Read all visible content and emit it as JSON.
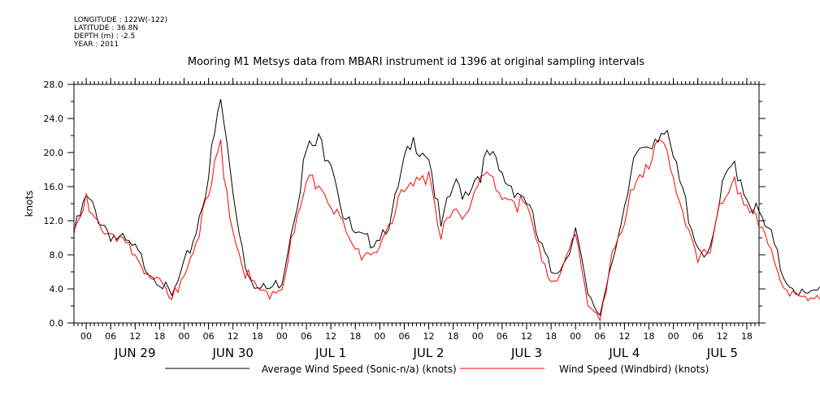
{
  "header": {
    "longitude": "LONGITUDE : 122W(-122)",
    "latitude": "LATITUDE : 36.8N",
    "depth": "DEPTH (m) : -2.5",
    "year": "YEAR : 2011"
  },
  "chart_data": {
    "type": "line",
    "title": "Mooring M1 Metsys data from MBARI instrument id 1396 at original sampling intervals",
    "ylabel": "knots",
    "ylim": [
      0,
      28
    ],
    "y_ticks": [
      "0.0",
      "4.0",
      "8.0",
      "12.0",
      "16.0",
      "20.0",
      "24.0",
      "28.0"
    ],
    "xlim_hours": [
      -3,
      165
    ],
    "x_hour_ticks": [
      "00",
      "06",
      "12",
      "18",
      "00",
      "06",
      "12",
      "18",
      "00",
      "06",
      "12",
      "18",
      "00",
      "06",
      "12",
      "18",
      "00",
      "06",
      "12",
      "18",
      "00",
      "06",
      "12",
      "18",
      "00",
      "06",
      "12",
      "18"
    ],
    "x_day_labels": [
      "JUN 29",
      "JUN 30",
      "JUL 1",
      "JUL 2",
      "JUL 3",
      "JUL 4",
      "JUL 5"
    ],
    "x_start": "2011-06-28 21:00",
    "x_step_hours": 3,
    "series": [
      {
        "name": "Average Wind Speed (Sonic-n/a) (knots)",
        "color": "#000000",
        "values": [
          10.5,
          14.5,
          12.5,
          10.5,
          9.5,
          8.5,
          6.5,
          5,
          3,
          6.5,
          11,
          17.5,
          26,
          15.5,
          7,
          4,
          4,
          5,
          13,
          20,
          21,
          20,
          13,
          10,
          9.5,
          10.5,
          12.5,
          18.5,
          21.5,
          20,
          11,
          16,
          15.5,
          17.5,
          19.5,
          17,
          16,
          14.5,
          9.5,
          6,
          7,
          11,
          3,
          1,
          8,
          12.5,
          20,
          21.5,
          23,
          19,
          14,
          9,
          8,
          15.5,
          19,
          15,
          12.5,
          10,
          5.5,
          4,
          3,
          4,
          4,
          5,
          5.5,
          6.5,
          8.5
        ]
      },
      {
        "name": "Wind Speed (Windbird) (knots)",
        "color": "#ff0000",
        "values": [
          10,
          14,
          12,
          10,
          9,
          8,
          6,
          4.5,
          2.5,
          6,
          10,
          14.5,
          21,
          11,
          6,
          3.5,
          3.5,
          4.5,
          10.5,
          16,
          17.5,
          14,
          11,
          8,
          8.5,
          9,
          11,
          16,
          18,
          17,
          9.5,
          14.5,
          13,
          15.5,
          17,
          15,
          14.5,
          13,
          8.5,
          5.5,
          6,
          10,
          2.5,
          0.8,
          7.5,
          11.5,
          17.5,
          19,
          20.5,
          17,
          12,
          8,
          7.5,
          15,
          17.5,
          13.5,
          11,
          9,
          4.5,
          3,
          2.5,
          3.5,
          3.5,
          4,
          4.5,
          5.5,
          8
        ]
      }
    ],
    "grid": false,
    "legend": "bottom"
  }
}
